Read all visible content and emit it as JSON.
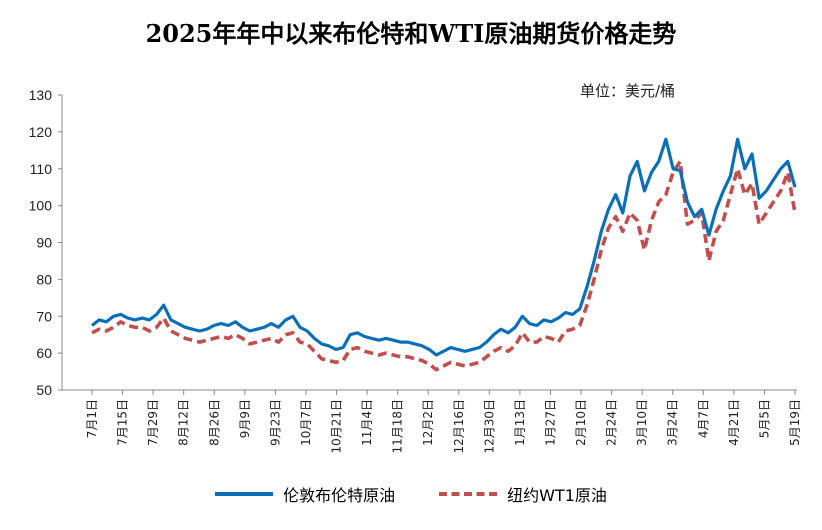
{
  "colors": {
    "brent": "#0b6fb8",
    "wti": "#c0504d",
    "axis": "#888888"
  },
  "chart_data": {
    "type": "line",
    "title": "2025年年中以来布伦特和WTI原油期货价格走势",
    "unit": "单位：美元/桶",
    "ylim": [
      50,
      130
    ],
    "yticks": [
      50,
      60,
      70,
      80,
      90,
      100,
      110,
      120,
      130
    ],
    "grid": false,
    "legend_position": "bottom",
    "x_ticks": [
      "7月1日",
      "7月15日",
      "7月29日",
      "8月12日",
      "8月26日",
      "9月9日",
      "9月23日",
      "10月7日",
      "10月21日",
      "11月4日",
      "11月18日",
      "12月2日",
      "12月16日",
      "12月30日",
      "1月13日",
      "1月27日",
      "2月10日",
      "2月24日",
      "3月10日",
      "3月24日",
      "4月7日",
      "4月21日",
      "5月5日",
      "5月19日"
    ],
    "series": [
      {
        "name": "伦敦布伦特原油",
        "style": "solid",
        "values": [
          [
            0,
            67.5
          ],
          [
            1,
            69
          ],
          [
            2,
            68.5
          ],
          [
            3,
            70
          ],
          [
            4,
            70.5
          ],
          [
            5,
            69.5
          ],
          [
            6,
            69
          ],
          [
            7,
            69.5
          ],
          [
            8,
            69
          ],
          [
            9,
            70.5
          ],
          [
            10,
            73
          ],
          [
            11,
            69
          ],
          [
            12,
            68
          ],
          [
            13,
            67
          ],
          [
            14,
            66.5
          ],
          [
            15,
            66
          ],
          [
            16,
            66.5
          ],
          [
            17,
            67.5
          ],
          [
            18,
            68
          ],
          [
            19,
            67.5
          ],
          [
            20,
            68.5
          ],
          [
            21,
            67
          ],
          [
            22,
            66
          ],
          [
            23,
            66.5
          ],
          [
            24,
            67
          ],
          [
            25,
            68
          ],
          [
            26,
            67
          ],
          [
            27,
            69
          ],
          [
            28,
            70
          ],
          [
            29,
            67
          ],
          [
            30,
            66
          ],
          [
            31,
            64
          ],
          [
            32,
            62.5
          ],
          [
            33,
            62
          ],
          [
            34,
            61
          ],
          [
            35,
            61.5
          ],
          [
            36,
            65
          ],
          [
            37,
            65.5
          ],
          [
            38,
            64.5
          ],
          [
            39,
            64
          ],
          [
            40,
            63.5
          ],
          [
            41,
            64
          ],
          [
            42,
            63.5
          ],
          [
            43,
            63
          ],
          [
            44,
            63
          ],
          [
            45,
            62.5
          ],
          [
            46,
            62
          ],
          [
            47,
            61
          ],
          [
            48,
            59.5
          ],
          [
            49,
            60.5
          ],
          [
            50,
            61.5
          ],
          [
            51,
            61
          ],
          [
            52,
            60.5
          ],
          [
            53,
            61
          ],
          [
            54,
            61.5
          ],
          [
            55,
            63
          ],
          [
            56,
            65
          ],
          [
            57,
            66.5
          ],
          [
            58,
            65.5
          ],
          [
            59,
            67
          ],
          [
            60,
            70
          ],
          [
            61,
            68
          ],
          [
            62,
            67.5
          ],
          [
            63,
            69
          ],
          [
            64,
            68.5
          ],
          [
            65,
            69.5
          ],
          [
            66,
            71
          ],
          [
            67,
            70.5
          ],
          [
            68,
            72
          ],
          [
            69,
            78
          ],
          [
            70,
            85
          ],
          [
            71,
            93
          ],
          [
            72,
            99
          ],
          [
            73,
            103
          ],
          [
            74,
            98
          ],
          [
            75,
            108
          ],
          [
            76,
            112
          ],
          [
            77,
            104
          ],
          [
            78,
            109
          ],
          [
            79,
            112
          ],
          [
            80,
            118
          ],
          [
            81,
            110
          ],
          [
            82,
            109.5
          ],
          [
            83,
            101
          ],
          [
            84,
            97
          ],
          [
            85,
            99
          ],
          [
            86,
            92
          ],
          [
            87,
            99
          ],
          [
            88,
            104
          ],
          [
            89,
            108
          ],
          [
            90,
            118
          ],
          [
            91,
            110
          ],
          [
            92,
            114
          ],
          [
            93,
            102
          ],
          [
            94,
            104
          ],
          [
            95,
            107
          ],
          [
            96,
            110
          ],
          [
            97,
            112
          ],
          [
            98,
            105
          ]
        ]
      },
      {
        "name": "纽约WT1原油",
        "style": "dashed",
        "values": [
          [
            0,
            65.5
          ],
          [
            1,
            66.5
          ],
          [
            2,
            66
          ],
          [
            3,
            67
          ],
          [
            4,
            68.5
          ],
          [
            5,
            67.5
          ],
          [
            6,
            67
          ],
          [
            7,
            67
          ],
          [
            8,
            66
          ],
          [
            9,
            67
          ],
          [
            10,
            69.5
          ],
          [
            11,
            66
          ],
          [
            12,
            65
          ],
          [
            13,
            64
          ],
          [
            14,
            63.5
          ],
          [
            15,
            63
          ],
          [
            16,
            63.5
          ],
          [
            17,
            64
          ],
          [
            18,
            64.5
          ],
          [
            19,
            64
          ],
          [
            20,
            65
          ],
          [
            21,
            64
          ],
          [
            22,
            62.5
          ],
          [
            23,
            63
          ],
          [
            24,
            63.5
          ],
          [
            25,
            64
          ],
          [
            26,
            63
          ],
          [
            27,
            65
          ],
          [
            28,
            65.5
          ],
          [
            29,
            63
          ],
          [
            30,
            62.5
          ],
          [
            31,
            60.5
          ],
          [
            32,
            58.5
          ],
          [
            33,
            58
          ],
          [
            34,
            57.5
          ],
          [
            35,
            58
          ],
          [
            36,
            61
          ],
          [
            37,
            61.5
          ],
          [
            38,
            60.5
          ],
          [
            39,
            60
          ],
          [
            40,
            59.5
          ],
          [
            41,
            60
          ],
          [
            42,
            59.5
          ],
          [
            43,
            59
          ],
          [
            44,
            59
          ],
          [
            45,
            58.5
          ],
          [
            46,
            58
          ],
          [
            47,
            57
          ],
          [
            48,
            55.5
          ],
          [
            49,
            56.5
          ],
          [
            50,
            57.5
          ],
          [
            51,
            57
          ],
          [
            52,
            56.5
          ],
          [
            53,
            57
          ],
          [
            54,
            57.5
          ],
          [
            55,
            59
          ],
          [
            56,
            60.5
          ],
          [
            57,
            61.5
          ],
          [
            58,
            60.5
          ],
          [
            59,
            62
          ],
          [
            60,
            65.5
          ],
          [
            61,
            63
          ],
          [
            62,
            63
          ],
          [
            63,
            64.5
          ],
          [
            64,
            64
          ],
          [
            65,
            63
          ],
          [
            66,
            66
          ],
          [
            67,
            66.5
          ],
          [
            68,
            67.5
          ],
          [
            69,
            73
          ],
          [
            70,
            80
          ],
          [
            71,
            88
          ],
          [
            72,
            94
          ],
          [
            73,
            97
          ],
          [
            74,
            93
          ],
          [
            75,
            98
          ],
          [
            76,
            96
          ],
          [
            77,
            88
          ],
          [
            78,
            96
          ],
          [
            79,
            101
          ],
          [
            80,
            103
          ],
          [
            81,
            109
          ],
          [
            82,
            112
          ],
          [
            83,
            95
          ],
          [
            84,
            96
          ],
          [
            85,
            98
          ],
          [
            86,
            85
          ],
          [
            87,
            93
          ],
          [
            88,
            96
          ],
          [
            89,
            103
          ],
          [
            90,
            110
          ],
          [
            91,
            103
          ],
          [
            92,
            106
          ],
          [
            93,
            95
          ],
          [
            94,
            98
          ],
          [
            95,
            101
          ],
          [
            96,
            104
          ],
          [
            97,
            109
          ],
          [
            98,
            98
          ]
        ]
      }
    ]
  }
}
